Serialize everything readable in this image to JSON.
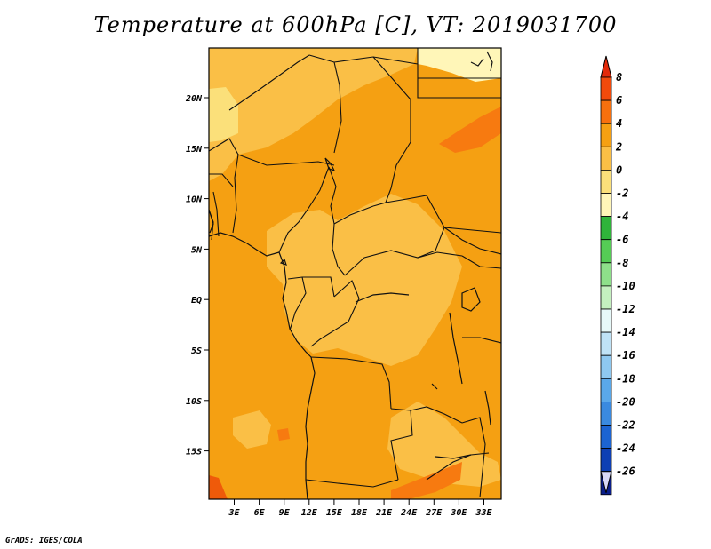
{
  "title": "Temperature at 600hPa [C], VT: 2019031700",
  "credit": "GrADS: IGES/COLA",
  "map": {
    "lat_labels": [
      "20N",
      "15N",
      "10N",
      "5N",
      "EQ",
      "5S",
      "10S",
      "15S"
    ],
    "lon_labels": [
      "3E",
      "6E",
      "9E",
      "12E",
      "15E",
      "18E",
      "21E",
      "24E",
      "27E",
      "30E",
      "33E"
    ],
    "field_colors": {
      "base": "#f5a012",
      "light": "#fabf46",
      "pale": "#fbe07a",
      "cream": "#fff6b8",
      "hot": "#f77a10",
      "hotter": "#ef5a0a"
    }
  },
  "colorbar": {
    "labels": [
      "8",
      "6",
      "4",
      "2",
      "0",
      "-2",
      "-4",
      "-6",
      "-8",
      "-10",
      "-12",
      "-14",
      "-16",
      "-18",
      "-20",
      "-22",
      "-24",
      "-26"
    ],
    "colors": [
      "#e22a0a",
      "#f24a0c",
      "#f7700e",
      "#f5a012",
      "#fabf46",
      "#fbe07a",
      "#fff6b8",
      "#2fb43a",
      "#55cc55",
      "#8ee08a",
      "#c4f0bf",
      "#e6f8f8",
      "#bfe2f6",
      "#8ec8f0",
      "#5aa8ea",
      "#3a8ae0",
      "#1c64d2",
      "#0e3fb4",
      "#0a1e8a",
      "#d8d8f6"
    ]
  }
}
